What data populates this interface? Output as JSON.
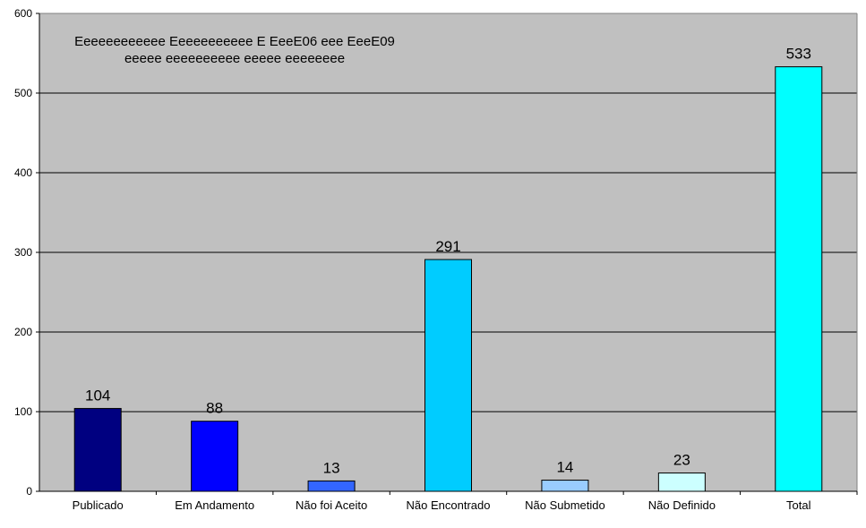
{
  "chart_data": {
    "type": "bar",
    "title": "Eeeeeeeeeeee Eeeeeeeeeee E EeeE06 eee EeeE09",
    "subtitle": "eeeee eeeeeeeeee eeeee eeeeeeee",
    "categories": [
      "Publicado",
      "Em Andamento",
      "Não foi Aceito",
      "Não Encontrado",
      "Não Submetido",
      "Não Definido",
      "Total"
    ],
    "values": [
      104,
      88,
      13,
      291,
      14,
      23,
      533
    ],
    "data_labels": [
      "104",
      "88",
      "13",
      "291",
      "14",
      "23",
      "533"
    ],
    "bar_colors": [
      "#000080",
      "#0000ff",
      "#3366ff",
      "#00ccff",
      "#99ccff",
      "#ccffff",
      "#00ffff"
    ],
    "ylim": [
      0,
      600
    ],
    "yticks": [
      "0",
      "100",
      "200",
      "300",
      "400",
      "500",
      "600"
    ],
    "plot_background": "#c0c0c0",
    "grid": true,
    "legend": "none"
  }
}
